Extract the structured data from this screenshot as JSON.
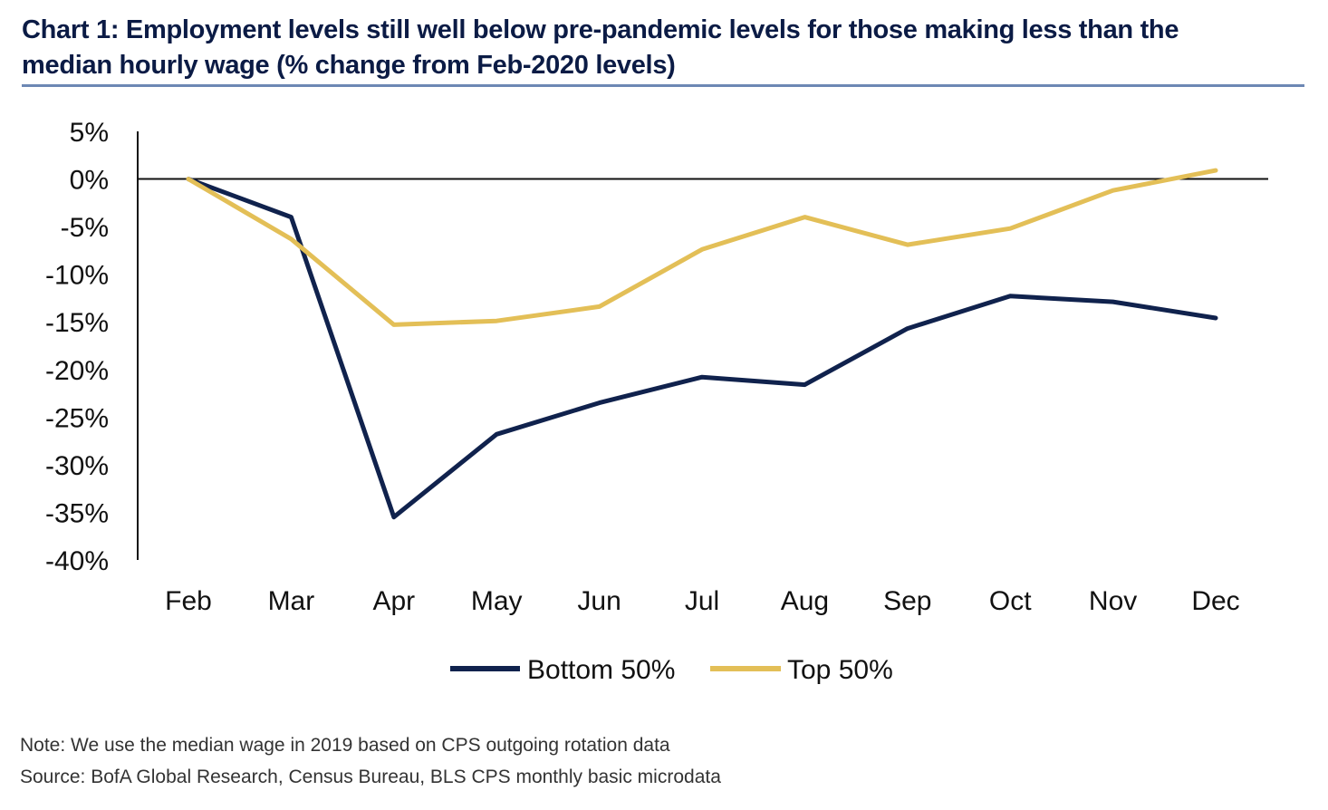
{
  "title": {
    "line1": "Chart 1: Employment levels still well below pre-pandemic levels for those making less than the",
    "line2": "median hourly wage (% change from Feb-2020 levels)"
  },
  "colors": {
    "title": "#0b1b45",
    "title_rule": "#6d88b4",
    "bottom_series": "#10224d",
    "top_series": "#e3bf57",
    "axis": "#111111"
  },
  "chart_data": {
    "type": "line",
    "title": "Chart 1: Employment levels still well below pre-pandemic levels for those making less than the median hourly wage (% change from Feb-2020 levels)",
    "categories": [
      "Feb",
      "Mar",
      "Apr",
      "May",
      "Jun",
      "Jul",
      "Aug",
      "Sep",
      "Oct",
      "Nov",
      "Dec"
    ],
    "series": [
      {
        "name": "Bottom 50%",
        "color": "#10224d",
        "values": [
          0,
          -4,
          -35.5,
          -26.8,
          -23.5,
          -20.8,
          -21.6,
          -15.7,
          -12.3,
          -12.9,
          -14.6
        ]
      },
      {
        "name": "Top 50%",
        "color": "#e3bf57",
        "values": [
          0,
          -6.3,
          -15.3,
          -14.9,
          -13.4,
          -7.4,
          -4,
          -6.9,
          -5.2,
          -1.2,
          0.9
        ]
      }
    ],
    "ylim": [
      -40,
      5
    ],
    "yticks": [
      5,
      0,
      -5,
      -10,
      -15,
      -20,
      -25,
      -30,
      -35,
      -40
    ],
    "ytick_labels": [
      "5%",
      "0%",
      "-5%",
      "-10%",
      "-15%",
      "-20%",
      "-25%",
      "-30%",
      "-35%",
      "-40%"
    ],
    "xlabel": "",
    "ylabel": "",
    "grid": false,
    "legend": "bottom-center"
  },
  "footer": {
    "note": "Note: We use the median wage in 2019 based on CPS outgoing rotation data",
    "source": "Source: BofA Global Research, Census Bureau, BLS CPS monthly basic microdata"
  }
}
